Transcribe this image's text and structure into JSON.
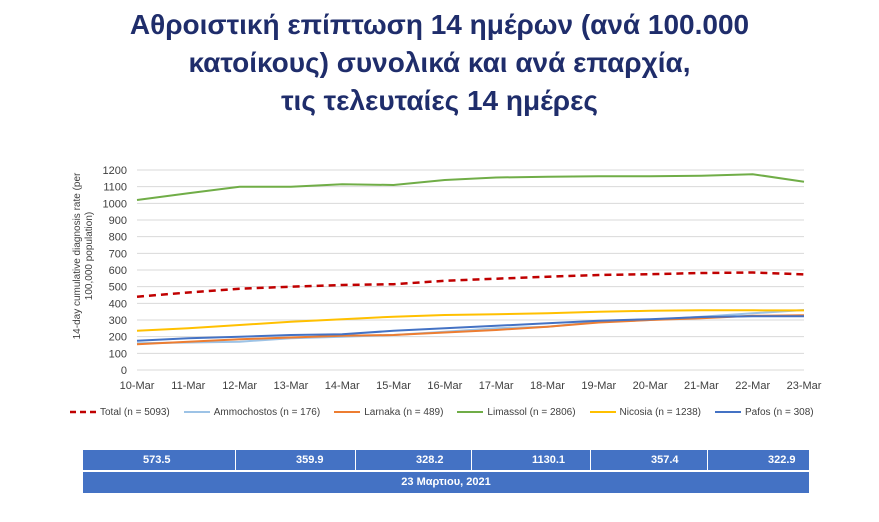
{
  "title": {
    "line1": "Αθροιστική επίπτωση 14 ημέρων (ανά 100.000",
    "line2": "κατοίκους) συνολικά και ανά επαρχία,",
    "line3": "τις τελευταίες 14 ημέρες"
  },
  "chart_data": {
    "type": "line",
    "categories": [
      "10-Mar",
      "11-Mar",
      "12-Mar",
      "13-Mar",
      "14-Mar",
      "15-Mar",
      "16-Mar",
      "17-Mar",
      "18-Mar",
      "19-Mar",
      "20-Mar",
      "21-Mar",
      "22-Mar",
      "23-Mar"
    ],
    "ylabel_line1": "14-day cumulative diagnosis rate (per",
    "ylabel_line2": "100,000 population)",
    "ylim": [
      0,
      1200
    ],
    "yticks": [
      0,
      100,
      200,
      300,
      400,
      500,
      600,
      700,
      800,
      900,
      1000,
      1100,
      1200
    ],
    "grid": true,
    "legend_position": "bottom",
    "series": [
      {
        "name": "Total (n = 5093)",
        "color": "#c00000",
        "dashed": true,
        "values": [
          440,
          465,
          488,
          500,
          510,
          515,
          535,
          548,
          560,
          570,
          575,
          582,
          585,
          573.5
        ]
      },
      {
        "name": "Ammochostos (n = 176)",
        "color": "#9dc3e6",
        "dashed": false,
        "values": [
          160,
          165,
          170,
          190,
          200,
          210,
          230,
          250,
          260,
          290,
          300,
          320,
          340,
          359.9
        ]
      },
      {
        "name": "Larnaka (n = 489)",
        "color": "#ed7d31",
        "dashed": false,
        "values": [
          155,
          170,
          185,
          195,
          205,
          210,
          225,
          240,
          260,
          285,
          300,
          310,
          325,
          328.2
        ]
      },
      {
        "name": "Limassol (n = 2806)",
        "color": "#70ad47",
        "dashed": false,
        "values": [
          1020,
          1060,
          1100,
          1100,
          1115,
          1110,
          1140,
          1155,
          1160,
          1162,
          1162,
          1165,
          1175,
          1130.1
        ]
      },
      {
        "name": "Nicosia (n = 1238)",
        "color": "#ffc000",
        "dashed": false,
        "values": [
          235,
          250,
          270,
          290,
          305,
          320,
          330,
          335,
          340,
          350,
          355,
          358,
          358,
          357.4
        ]
      },
      {
        "name": "Pafos (n = 308)",
        "color": "#4472c4",
        "dashed": false,
        "values": [
          175,
          190,
          200,
          210,
          215,
          235,
          250,
          265,
          280,
          295,
          305,
          318,
          322,
          322.9
        ]
      }
    ]
  },
  "summary": {
    "values": [
      "573.5",
      "359.9",
      "328.2",
      "1130.1",
      "357.4",
      "322.9"
    ],
    "date": "23 Μαρτιου, 2021"
  }
}
